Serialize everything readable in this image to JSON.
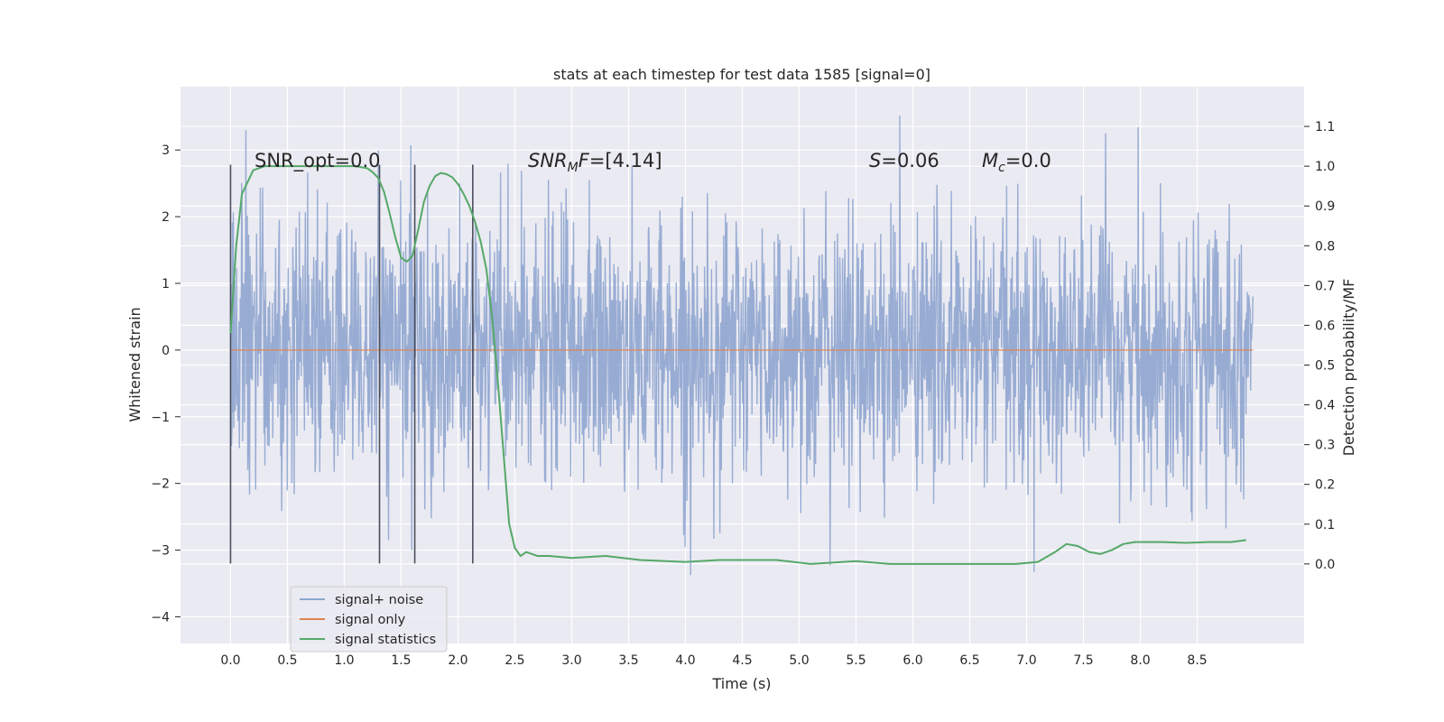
{
  "chart_data": {
    "type": "line",
    "title": "stats at each timestep for test data 1585 [signal=0]",
    "xlabel": "Time (s)",
    "ylabel": "Whitened strain",
    "ylabel_right": "Detection probability/MF",
    "xlim": [
      -0.44,
      9.44
    ],
    "ylim": [
      -4.4,
      3.95
    ],
    "ylim_right": [
      -0.2,
      1.2
    ],
    "x_ticks": [
      "0.0",
      "0.5",
      "1.0",
      "1.5",
      "2.0",
      "2.5",
      "3.0",
      "3.5",
      "4.0",
      "4.5",
      "5.0",
      "5.5",
      "6.0",
      "6.5",
      "7.0",
      "7.5",
      "8.0",
      "8.5"
    ],
    "y_ticks": [
      "3",
      "2",
      "1",
      "0",
      "−1",
      "−2",
      "−3",
      "−4"
    ],
    "y_right_ticks": [
      "0.0",
      "0.1",
      "0.2",
      "0.3",
      "0.4",
      "0.5",
      "0.6",
      "0.7",
      "0.8",
      "0.9",
      "1.0",
      "1.1"
    ],
    "grid": true,
    "legend_position": "lower-left",
    "colors": {
      "background": "#eaeaf2",
      "noise": "#8fa5cf",
      "signal": "#dd8452",
      "stats": "#55a868",
      "vline": "#4a4e5c"
    },
    "annotations": {
      "snr_opt": "SNR_opt=0.0",
      "snr_mf_math": "SNR",
      "snr_mf_sub": "M",
      "snr_mf_italic": "F",
      "snr_mf_value": "=[4.14]",
      "s_math": "S",
      "s_value": "=0.06",
      "mc_math": "M",
      "mc_sub": "c",
      "mc_value": "=0.0"
    },
    "vertical_lines": [
      0.0,
      1.31,
      1.62,
      2.13
    ],
    "noise_envelope": {
      "x_range": [
        0.0,
        8.99
      ],
      "typical_abs": 1.0,
      "max": 3.55,
      "min": -4.03
    },
    "series": [
      {
        "name": "signal+ noise",
        "values": []
      },
      {
        "name": "signal only",
        "x": [
          0.0,
          8.99
        ],
        "values": [
          0.0,
          0.0
        ]
      },
      {
        "name": "signal statistics",
        "axis": "right",
        "x": [
          0.0,
          0.05,
          0.1,
          0.15,
          0.2,
          0.3,
          0.4,
          0.5,
          0.6,
          0.8,
          1.0,
          1.1,
          1.2,
          1.25,
          1.3,
          1.35,
          1.4,
          1.45,
          1.5,
          1.55,
          1.6,
          1.65,
          1.7,
          1.75,
          1.8,
          1.85,
          1.9,
          1.95,
          2.0,
          2.05,
          2.1,
          2.15,
          2.2,
          2.25,
          2.3,
          2.35,
          2.4,
          2.45,
          2.5,
          2.55,
          2.6,
          2.7,
          2.8,
          3.0,
          3.3,
          3.6,
          4.0,
          4.3,
          4.5,
          4.8,
          5.1,
          5.5,
          5.8,
          6.2,
          6.6,
          6.9,
          7.1,
          7.25,
          7.35,
          7.45,
          7.55,
          7.65,
          7.75,
          7.85,
          7.95,
          8.05,
          8.2,
          8.4,
          8.6,
          8.8,
          8.93
        ],
        "values": [
          0.58,
          0.8,
          0.93,
          0.96,
          0.99,
          1.0,
          1.0,
          1.0,
          1.0,
          1.0,
          1.0,
          1.0,
          0.995,
          0.985,
          0.97,
          0.935,
          0.88,
          0.82,
          0.77,
          0.76,
          0.775,
          0.84,
          0.91,
          0.95,
          0.975,
          0.983,
          0.98,
          0.972,
          0.955,
          0.93,
          0.9,
          0.86,
          0.81,
          0.74,
          0.62,
          0.46,
          0.28,
          0.1,
          0.04,
          0.02,
          0.03,
          0.02,
          0.02,
          0.015,
          0.02,
          0.01,
          0.005,
          0.01,
          0.01,
          0.01,
          0.0,
          0.007,
          0.0,
          0.0,
          0.0,
          0.0,
          0.005,
          0.03,
          0.05,
          0.045,
          0.03,
          0.025,
          0.035,
          0.05,
          0.055,
          0.055,
          0.055,
          0.053,
          0.055,
          0.055,
          0.06
        ]
      }
    ]
  }
}
